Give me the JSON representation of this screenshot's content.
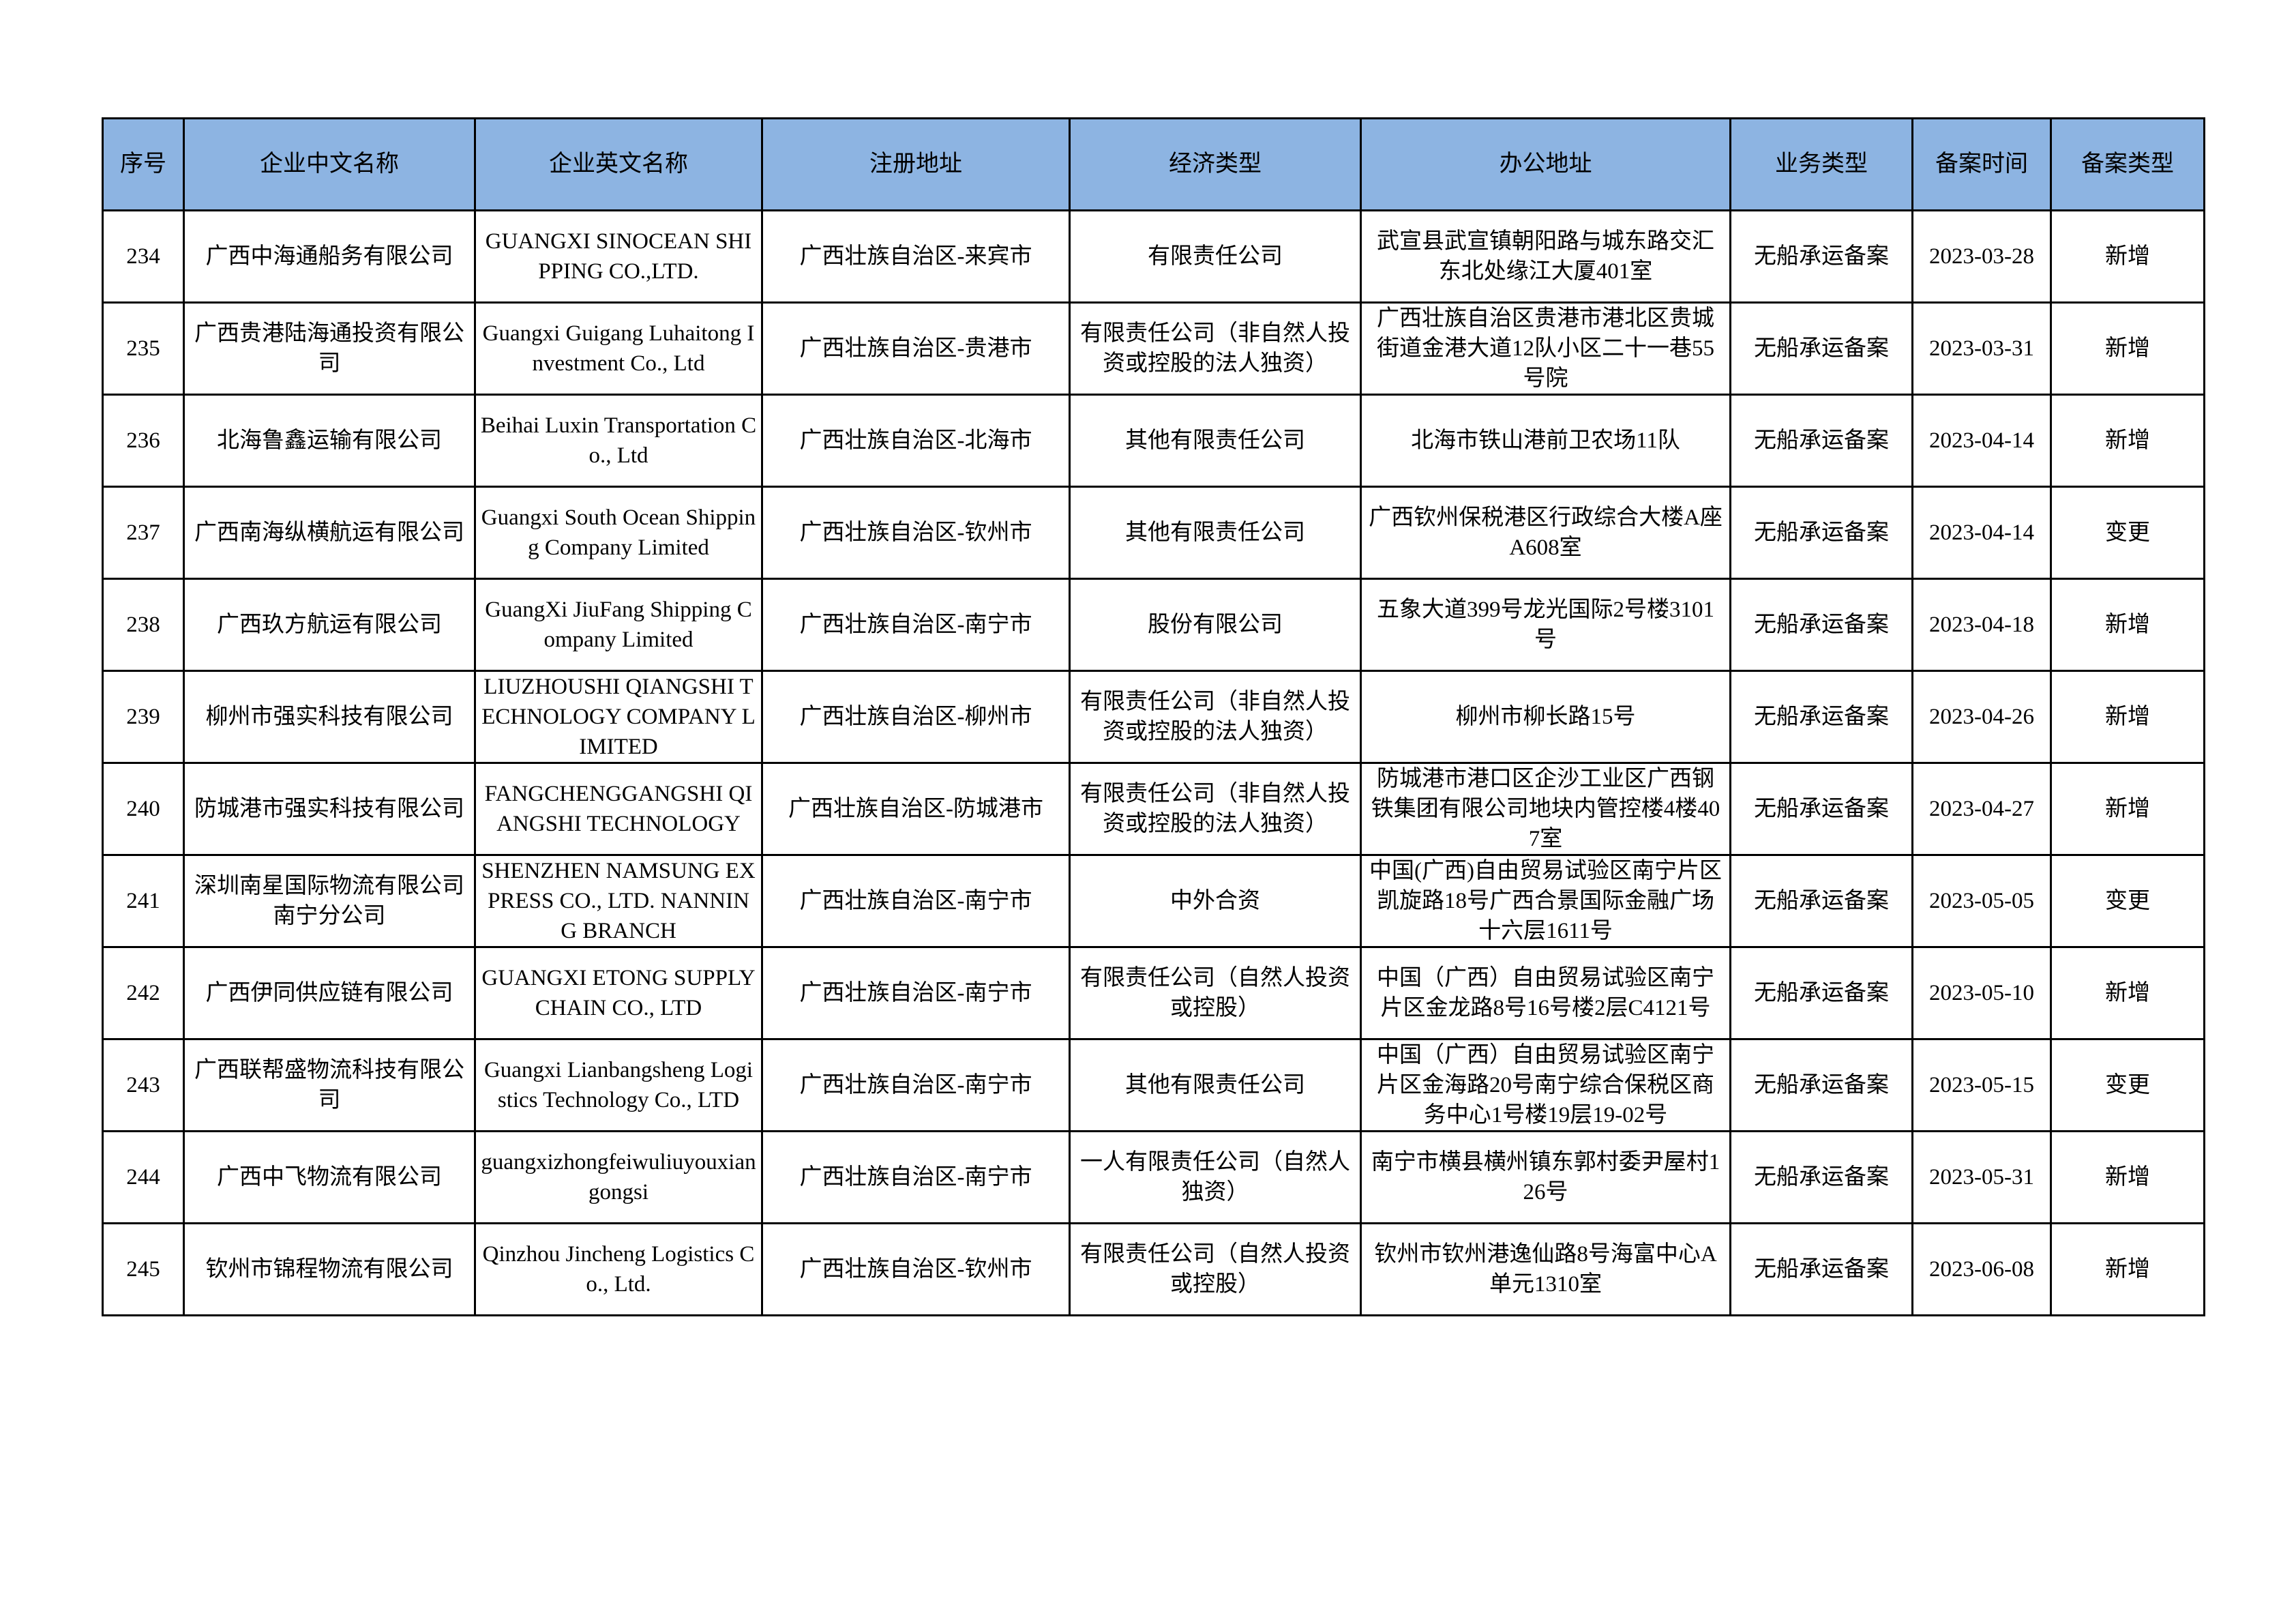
{
  "colors": {
    "header_bg": "#8db4e2",
    "border": "#000000"
  },
  "table": {
    "headers": [
      "序号",
      "企业中文名称",
      "企业英文名称",
      "注册地址",
      "经济类型",
      "办公地址",
      "业务类型",
      "备案时间",
      "备案类型"
    ],
    "rows": [
      [
        "234",
        "广西中海通船务有限公司",
        "GUANGXI SINOCEAN SHIPPING CO.,LTD.",
        "广西壮族自治区-来宾市",
        "有限责任公司",
        "武宣县武宣镇朝阳路与城东路交汇东北处缘江大厦401室",
        "无船承运备案",
        "2023-03-28",
        "新增"
      ],
      [
        "235",
        "广西贵港陆海通投资有限公司",
        "Guangxi Guigang Luhaitong Investment Co., Ltd",
        "广西壮族自治区-贵港市",
        "有限责任公司（非自然人投资或控股的法人独资）",
        "广西壮族自治区贵港市港北区贵城街道金港大道12队小区二十一巷55号院",
        "无船承运备案",
        "2023-03-31",
        "新增"
      ],
      [
        "236",
        "北海鲁鑫运输有限公司",
        "Beihai Luxin Transportation Co., Ltd",
        "广西壮族自治区-北海市",
        "其他有限责任公司",
        "北海市铁山港前卫农场11队",
        "无船承运备案",
        "2023-04-14",
        "新增"
      ],
      [
        "237",
        "广西南海纵横航运有限公司",
        "Guangxi South Ocean Shipping Company Limited",
        "广西壮族自治区-钦州市",
        "其他有限责任公司",
        "广西钦州保税港区行政综合大楼A座A608室",
        "无船承运备案",
        "2023-04-14",
        "变更"
      ],
      [
        "238",
        "广西玖方航运有限公司",
        "GuangXi JiuFang Shipping Company Limited",
        "广西壮族自治区-南宁市",
        "股份有限公司",
        "五象大道399号龙光国际2号楼3101号",
        "无船承运备案",
        "2023-04-18",
        "新增"
      ],
      [
        "239",
        "柳州市强实科技有限公司",
        "LIUZHOUSHI QIANGSHI TECHNOLOGY COMPANY LIMITED",
        "广西壮族自治区-柳州市",
        "有限责任公司（非自然人投资或控股的法人独资）",
        "柳州市柳长路15号",
        "无船承运备案",
        "2023-04-26",
        "新增"
      ],
      [
        "240",
        "防城港市强实科技有限公司",
        "FANGCHENGGANGSHI QIANGSHI TECHNOLOGY",
        "广西壮族自治区-防城港市",
        "有限责任公司（非自然人投资或控股的法人独资）",
        "防城港市港口区企沙工业区广西钢铁集团有限公司地块内管控楼4楼407室",
        "无船承运备案",
        "2023-04-27",
        "新增"
      ],
      [
        "241",
        "深圳南星国际物流有限公司南宁分公司",
        "SHENZHEN NAMSUNG EXPRESS CO., LTD. NANNING BRANCH",
        "广西壮族自治区-南宁市",
        "中外合资",
        "中国(广西)自由贸易试验区南宁片区凯旋路18号广西合景国际金融广场十六层1611号",
        "无船承运备案",
        "2023-05-05",
        "变更"
      ],
      [
        "242",
        "广西伊同供应链有限公司",
        "GUANGXI ETONG SUPPLY CHAIN CO., LTD",
        "广西壮族自治区-南宁市",
        "有限责任公司（自然人投资或控股）",
        "中国（广西）自由贸易试验区南宁片区金龙路8号16号楼2层C4121号",
        "无船承运备案",
        "2023-05-10",
        "新增"
      ],
      [
        "243",
        "广西联帮盛物流科技有限公司",
        "Guangxi Lianbangsheng Logistics Technology Co., LTD",
        "广西壮族自治区-南宁市",
        "其他有限责任公司",
        "中国（广西）自由贸易试验区南宁片区金海路20号南宁综合保税区商务中心1号楼19层19-02号",
        "无船承运备案",
        "2023-05-15",
        "变更"
      ],
      [
        "244",
        "广西中飞物流有限公司",
        "guangxizhongfeiwuliuyouxiangongsi",
        "广西壮族自治区-南宁市",
        "一人有限责任公司（自然人独资）",
        "南宁市横县横州镇东郭村委尹屋村126号",
        "无船承运备案",
        "2023-05-31",
        "新增"
      ],
      [
        "245",
        "钦州市锦程物流有限公司",
        "Qinzhou Jincheng Logistics Co., Ltd.",
        "广西壮族自治区-钦州市",
        "有限责任公司（自然人投资或控股）",
        "钦州市钦州港逸仙路8号海富中心A单元1310室",
        "无船承运备案",
        "2023-06-08",
        "新增"
      ]
    ]
  }
}
